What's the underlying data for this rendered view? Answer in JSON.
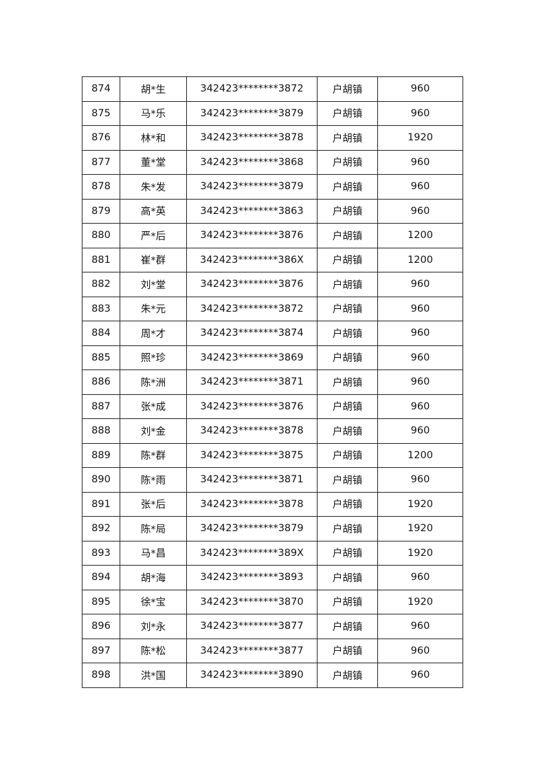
{
  "table": {
    "rows": [
      {
        "no": "874",
        "name": "胡*生",
        "id": "342423********3872",
        "town": "户胡镇",
        "amount": "960"
      },
      {
        "no": "875",
        "name": "马*乐",
        "id": "342423********3879",
        "town": "户胡镇",
        "amount": "960"
      },
      {
        "no": "876",
        "name": "林*和",
        "id": "342423********3878",
        "town": "户胡镇",
        "amount": "1920"
      },
      {
        "no": "877",
        "name": "董*堂",
        "id": "342423********3868",
        "town": "户胡镇",
        "amount": "960"
      },
      {
        "no": "878",
        "name": "朱*发",
        "id": "342423********3879",
        "town": "户胡镇",
        "amount": "960"
      },
      {
        "no": "879",
        "name": "高*英",
        "id": "342423********3863",
        "town": "户胡镇",
        "amount": "960"
      },
      {
        "no": "880",
        "name": "严*后",
        "id": "342423********3876",
        "town": "户胡镇",
        "amount": "1200"
      },
      {
        "no": "881",
        "name": "崔*群",
        "id": "342423********386X",
        "town": "户胡镇",
        "amount": "1200"
      },
      {
        "no": "882",
        "name": "刘*堂",
        "id": "342423********3876",
        "town": "户胡镇",
        "amount": "960"
      },
      {
        "no": "883",
        "name": "朱*元",
        "id": "342423********3872",
        "town": "户胡镇",
        "amount": "960"
      },
      {
        "no": "884",
        "name": "周*才",
        "id": "342423********3874",
        "town": "户胡镇",
        "amount": "960"
      },
      {
        "no": "885",
        "name": "照*珍",
        "id": "342423********3869",
        "town": "户胡镇",
        "amount": "960"
      },
      {
        "no": "886",
        "name": "陈*洲",
        "id": "342423********3871",
        "town": "户胡镇",
        "amount": "960"
      },
      {
        "no": "887",
        "name": "张*成",
        "id": "342423********3876",
        "town": "户胡镇",
        "amount": "960"
      },
      {
        "no": "888",
        "name": "刘*金",
        "id": "342423********3878",
        "town": "户胡镇",
        "amount": "960"
      },
      {
        "no": "889",
        "name": "陈*群",
        "id": "342423********3875",
        "town": "户胡镇",
        "amount": "1200"
      },
      {
        "no": "890",
        "name": "陈*雨",
        "id": "342423********3871",
        "town": "户胡镇",
        "amount": "960"
      },
      {
        "no": "891",
        "name": "张*后",
        "id": "342423********3878",
        "town": "户胡镇",
        "amount": "1920"
      },
      {
        "no": "892",
        "name": "陈*局",
        "id": "342423********3879",
        "town": "户胡镇",
        "amount": "1920"
      },
      {
        "no": "893",
        "name": "马*昌",
        "id": "342423********389X",
        "town": "户胡镇",
        "amount": "1920"
      },
      {
        "no": "894",
        "name": "胡*海",
        "id": "342423********3893",
        "town": "户胡镇",
        "amount": "960"
      },
      {
        "no": "895",
        "name": "徐*宝",
        "id": "342423********3870",
        "town": "户胡镇",
        "amount": "1920"
      },
      {
        "no": "896",
        "name": "刘*永",
        "id": "342423********3877",
        "town": "户胡镇",
        "amount": "960"
      },
      {
        "no": "897",
        "name": "陈*松",
        "id": "342423********3877",
        "town": "户胡镇",
        "amount": "960"
      },
      {
        "no": "898",
        "name": "洪*国",
        "id": "342423********3890",
        "town": "户胡镇",
        "amount": "960"
      }
    ]
  }
}
